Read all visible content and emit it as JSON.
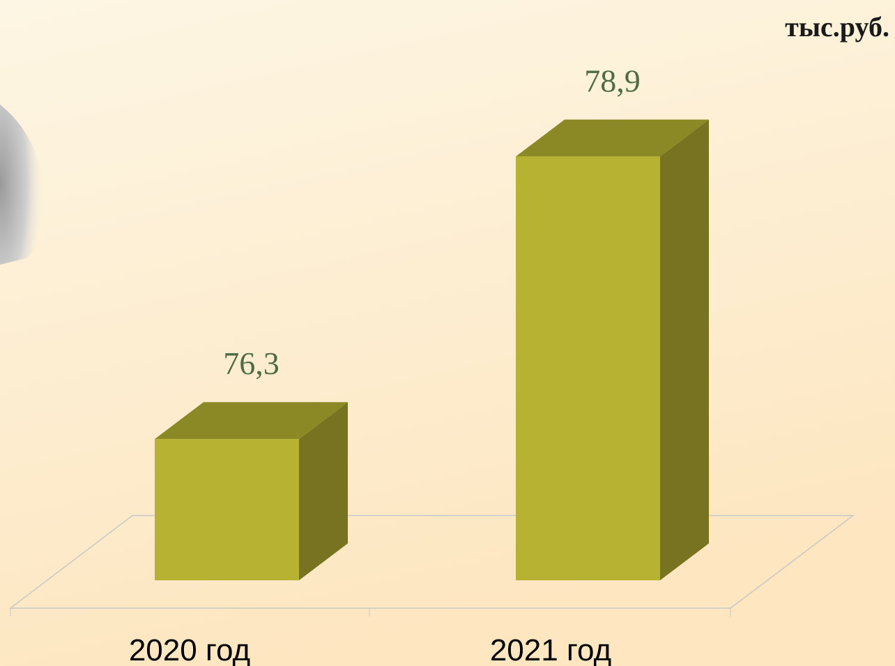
{
  "chart_data": {
    "type": "bar3d",
    "unit_label": "тыс.руб.",
    "categories": [
      "2020 год",
      "2021 год"
    ],
    "values": [
      76.3,
      78.9
    ],
    "value_labels": [
      "76,3",
      "78,9"
    ],
    "color": "#b8b232",
    "ylim": [
      75,
      80
    ]
  }
}
